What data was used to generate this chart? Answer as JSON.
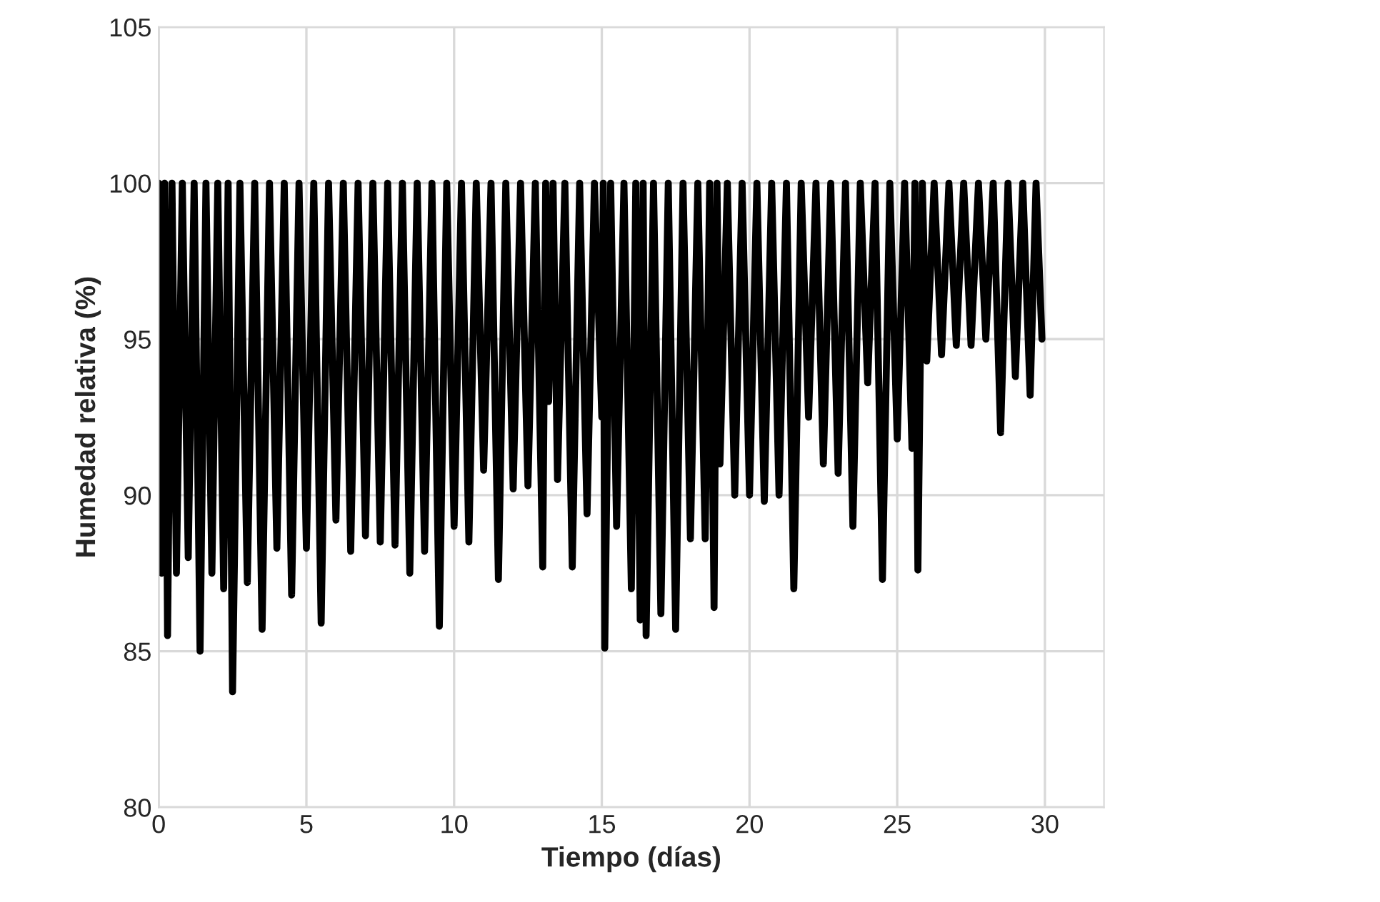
{
  "chart_data": {
    "type": "line",
    "xlabel": "Tiempo (días)",
    "ylabel": "Humedad relativa (%)",
    "xlim": [
      0,
      32
    ],
    "xticks": [
      0,
      5,
      10,
      15,
      20,
      25,
      30
    ],
    "ylim": [
      80,
      105
    ],
    "yticks": [
      80,
      85,
      90,
      95,
      100,
      105
    ],
    "grid": true,
    "marker": "none",
    "line_style": "solid",
    "series": [
      {
        "color": "#000000",
        "x": [
          0,
          0.1,
          0.2,
          0.3,
          0.45,
          0.6,
          0.8,
          1.0,
          1.2,
          1.4,
          1.6,
          1.8,
          2.0,
          2.2,
          2.35,
          2.5,
          2.75,
          3.0,
          3.25,
          3.5,
          3.75,
          4.0,
          4.25,
          4.5,
          4.75,
          5.0,
          5.25,
          5.5,
          5.75,
          6.0,
          6.25,
          6.5,
          6.75,
          7.0,
          7.25,
          7.5,
          7.75,
          8.0,
          8.25,
          8.5,
          8.75,
          9.0,
          9.25,
          9.5,
          9.75,
          10.0,
          10.25,
          10.5,
          10.75,
          11.0,
          11.25,
          11.5,
          11.75,
          12.0,
          12.25,
          12.5,
          12.75,
          13.0,
          13.1,
          13.2,
          13.35,
          13.5,
          13.75,
          14.0,
          14.25,
          14.5,
          14.75,
          15.0,
          15.05,
          15.1,
          15.3,
          15.5,
          15.75,
          16.0,
          16.15,
          16.3,
          16.4,
          16.5,
          16.75,
          17.0,
          17.25,
          17.5,
          17.75,
          18.0,
          18.25,
          18.5,
          18.65,
          18.8,
          18.9,
          19.0,
          19.25,
          19.5,
          19.75,
          20.0,
          20.25,
          20.5,
          20.75,
          21.0,
          21.25,
          21.5,
          21.75,
          22.0,
          22.25,
          22.5,
          22.75,
          23.0,
          23.25,
          23.5,
          23.75,
          24.0,
          24.25,
          24.5,
          24.75,
          25.0,
          25.25,
          25.5,
          25.6,
          25.7,
          25.85,
          26.0,
          26.25,
          26.5,
          26.75,
          27.0,
          27.25,
          27.5,
          27.75,
          28.0,
          28.25,
          28.5,
          28.75,
          29.0,
          29.25,
          29.5,
          29.7,
          29.9
        ],
        "values": [
          100,
          87.5,
          100,
          85.5,
          100,
          87.5,
          100,
          88,
          100,
          85,
          100,
          87.5,
          100,
          87,
          100,
          83.7,
          100,
          87.2,
          100,
          85.7,
          100,
          88.3,
          100,
          86.8,
          100,
          88.3,
          100,
          85.9,
          100,
          89.2,
          100,
          88.2,
          100,
          88.7,
          100,
          88.5,
          100,
          88.4,
          100,
          87.5,
          100,
          88.2,
          100,
          85.8,
          100,
          89,
          100,
          88.5,
          100,
          90.8,
          100,
          87.3,
          100,
          90.2,
          100,
          90.3,
          100,
          87.7,
          100,
          93,
          100,
          90.5,
          100,
          87.7,
          100,
          89.4,
          100,
          92.5,
          100,
          85.1,
          100,
          89,
          100,
          87,
          100,
          86,
          100,
          85.5,
          100,
          86.2,
          100,
          85.7,
          100,
          88.6,
          100,
          88.6,
          100,
          86.4,
          100,
          91,
          100,
          90,
          100,
          90,
          100,
          89.8,
          100,
          90,
          100,
          87,
          100,
          92.5,
          100,
          91,
          100,
          90.7,
          100,
          89,
          100,
          93.6,
          100,
          87.3,
          100,
          91.8,
          100,
          91.5,
          100,
          87.6,
          100,
          94.3,
          100,
          94.5,
          100,
          94.8,
          100,
          94.8,
          100,
          95,
          100,
          92,
          100,
          93.8,
          100,
          93.2,
          100,
          95
        ]
      }
    ]
  }
}
